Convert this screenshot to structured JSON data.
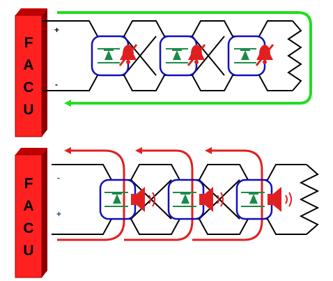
{
  "panels": [
    {
      "id": "normal",
      "facu_letters": [
        "F",
        "A",
        "C",
        "U"
      ],
      "terminal_top": "+",
      "terminal_bottom": "-",
      "terminal_top_color": "#000000",
      "terminal_bottom_color": "#000000",
      "loop_arrow_color": "#22dd22",
      "device_state": "silent",
      "device_icons": [
        "diode-icon",
        "muted-bell-icon"
      ]
    },
    {
      "id": "alarm",
      "facu_letters": [
        "F",
        "A",
        "C",
        "U"
      ],
      "terminal_top": "-",
      "terminal_bottom": "+",
      "terminal_top_color": "#1a4a8a",
      "terminal_bottom_color": "#1a4a8a",
      "loop_arrow_color": "#e02020",
      "device_state": "sounding",
      "device_icons": [
        "diode-icon",
        "speaker-icon",
        "sound-waves-icon"
      ]
    }
  ],
  "colors": {
    "facu_box": "#ff2020",
    "facu_box_dark": "#a00000",
    "wire": "#000000",
    "device_outline": "#1010c0",
    "diode": "#1a8a4a",
    "bell": "#e02020"
  }
}
